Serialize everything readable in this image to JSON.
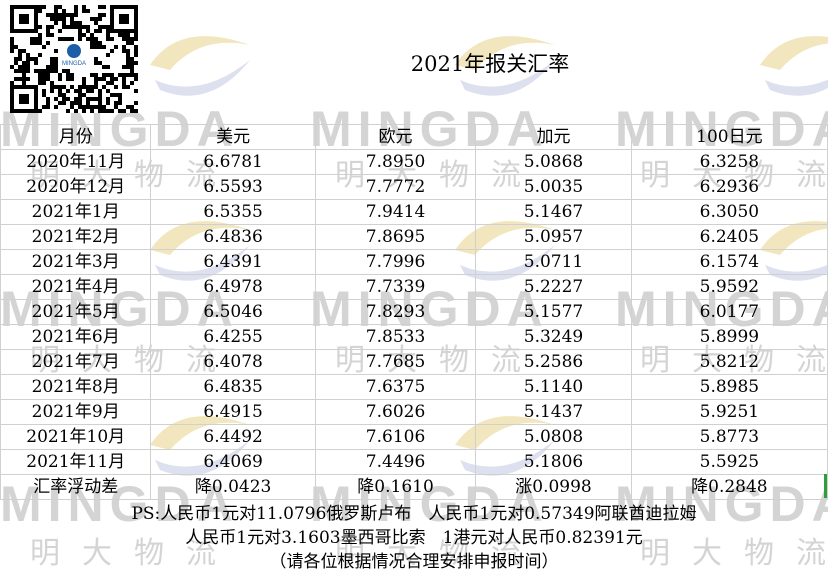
{
  "title": "2021年报关汇率",
  "watermark": {
    "brand": "MINGDA",
    "cn": "明大物流"
  },
  "qr_logo_text": "MINGDA",
  "table": {
    "headers": [
      "月份",
      "美元",
      "欧元",
      "加元",
      "100日元"
    ],
    "rows": [
      [
        "2020年11月",
        "6.6781",
        "7.8950",
        "5.0868",
        "6.3258"
      ],
      [
        "2020年12月",
        "6.5593",
        "7.7772",
        "5.0035",
        "6.2936"
      ],
      [
        "2021年1月",
        "6.5355",
        "7.9414",
        "5.1467",
        "6.3050"
      ],
      [
        "2021年2月",
        "6.4836",
        "7.8695",
        "5.0957",
        "6.2405"
      ],
      [
        "2021年3月",
        "6.4391",
        "7.7996",
        "5.0711",
        "6.1574"
      ],
      [
        "2021年4月",
        "6.4978",
        "7.7339",
        "5.2227",
        "5.9592"
      ],
      [
        "2021年5月",
        "6.5046",
        "7.8293",
        "5.1577",
        "6.0177"
      ],
      [
        "2021年6月",
        "6.4255",
        "7.8533",
        "5.3249",
        "5.8999"
      ],
      [
        "2021年7月",
        "6.4078",
        "7.7685",
        "5.2586",
        "5.8212"
      ],
      [
        "2021年8月",
        "6.4835",
        "7.6375",
        "5.1140",
        "5.8985"
      ],
      [
        "2021年9月",
        "6.4915",
        "7.6026",
        "5.1437",
        "5.9251"
      ],
      [
        "2021年10月",
        "6.4492",
        "7.6106",
        "5.0808",
        "5.8773"
      ],
      [
        "2021年11月",
        "6.4069",
        "7.4496",
        "5.1806",
        "5.5925"
      ]
    ],
    "diff_row": [
      "汇率浮动差",
      "降0.0423",
      "降0.1610",
      "涨0.0998",
      "降0.2848"
    ]
  },
  "notes": [
    "PS:人民币1元对11.0796俄罗斯卢布　人民币1元对0.57349阿联酋迪拉姆",
    "人民币1元对3.1603墨西哥比索　1港元对人民币0.82391元",
    "（请各位根据情况合理安排申报时间）"
  ]
}
